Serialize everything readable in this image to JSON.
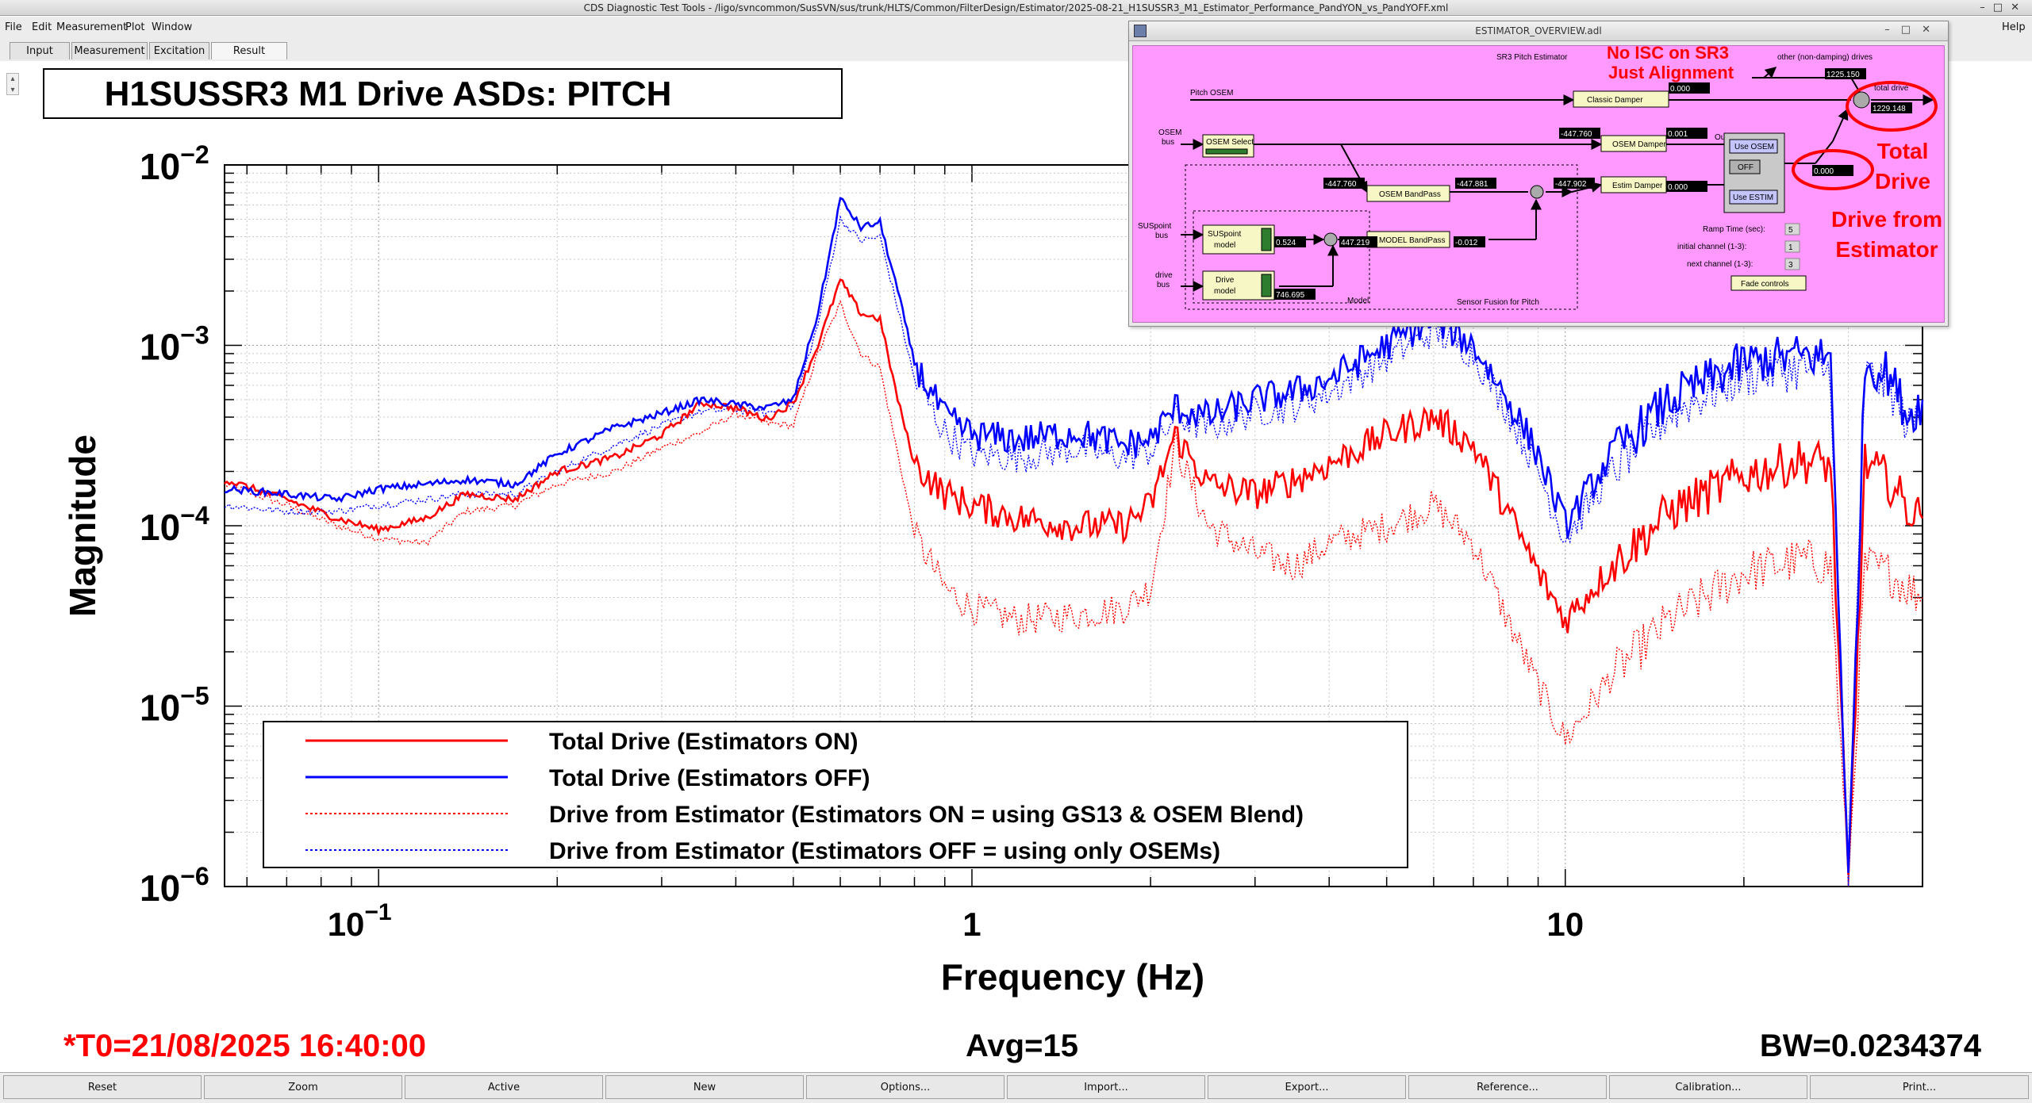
{
  "app": {
    "title": "CDS Diagnostic Test Tools - /ligo/svncommon/SusSVN/sus/trunk/HLTS/Common/FilterDesign/Estimator/2025-08-21_H1SUSSR3_M1_Estimator_Performance_PandYON_vs_PandYOFF.xml"
  },
  "menu": {
    "file": "File",
    "edit": "Edit",
    "measurement": "Measurement",
    "plot": "Plot",
    "window": "Window",
    "help": "Help"
  },
  "tabs": [
    "Input",
    "Measurement",
    "Excitation",
    "Result"
  ],
  "plot": {
    "title": "H1SUSSR3 M1 Drive ASDs: PITCH",
    "ylabel": "Magnitude",
    "xlabel": "Frequency (Hz)",
    "t0": "*T0=21/08/2025 16:40:00",
    "avg": "Avg=15",
    "bw": "BW=0.0234374",
    "ytick_base": "10",
    "yticks": [
      "−2",
      "−3",
      "−4",
      "−5",
      "−6"
    ],
    "xtick_base": "10",
    "xtick_exp": "−1",
    "xtick_1": "1",
    "xtick_10": "10"
  },
  "legend": [
    "Total Drive (Estimators ON)",
    "Total Drive (Estimators OFF)",
    "Drive from Estimator (Estimators ON = using GS13 & OSEM Blend)",
    "Drive from Estimator (Estimators OFF = using only OSEMs)"
  ],
  "colors": {
    "on": "#ff0000",
    "off": "#0000ff",
    "annotation": "#ff0000",
    "medm_bg": "#ff99ff"
  },
  "chart_data": {
    "type": "line",
    "xlabel": "Frequency (Hz)",
    "ylabel": "Magnitude",
    "title": "H1SUSSR3 M1 Drive ASDs: PITCH",
    "xscale": "log",
    "yscale": "log",
    "xlim": [
      0.055,
      40
    ],
    "ylim": [
      1e-06,
      0.01
    ],
    "grid": true,
    "legend_position": "bottom-left",
    "series": [
      {
        "name": "Total Drive (Estimators ON)",
        "style": "solid",
        "color": "#ff0000",
        "x": [
          0.055,
          0.07,
          0.085,
          0.1,
          0.12,
          0.14,
          0.17,
          0.2,
          0.25,
          0.3,
          0.35,
          0.4,
          0.45,
          0.5,
          0.55,
          0.6,
          0.65,
          0.7,
          0.75,
          0.8,
          0.9,
          1.0,
          1.2,
          1.5,
          1.8,
          2.0,
          2.2,
          2.5,
          3.0,
          3.5,
          4.0,
          5.0,
          6.0,
          7.0,
          8.0,
          9.0,
          10.0,
          12.0,
          15.0,
          20.0,
          25.0,
          28.0,
          30.0,
          32.0,
          35.0,
          38.0,
          40.0
        ],
        "y": [
          0.00018,
          0.00014,
          0.00011,
          9.5e-05,
          0.00011,
          0.00015,
          0.00014,
          0.0002,
          0.00024,
          0.00032,
          0.00048,
          0.00045,
          0.00039,
          0.00048,
          0.001,
          0.0023,
          0.0015,
          0.0014,
          0.0005,
          0.00022,
          0.00015,
          0.00013,
          0.00011,
          0.0001,
          0.0001,
          0.00013,
          0.00032,
          0.00017,
          0.00015,
          0.00018,
          0.00022,
          0.00032,
          0.0004,
          0.00028,
          0.00012,
          5.5e-05,
          3e-05,
          6e-05,
          0.00012,
          0.00019,
          0.00023,
          0.00022,
          1e-06,
          0.00022,
          0.00018,
          0.00012,
          0.00011
        ]
      },
      {
        "name": "Total Drive (Estimators OFF)",
        "style": "solid",
        "color": "#0000ff",
        "x": [
          0.055,
          0.07,
          0.085,
          0.1,
          0.12,
          0.14,
          0.17,
          0.2,
          0.25,
          0.3,
          0.35,
          0.4,
          0.45,
          0.5,
          0.55,
          0.6,
          0.65,
          0.7,
          0.75,
          0.8,
          0.9,
          1.0,
          1.2,
          1.5,
          1.8,
          2.0,
          2.2,
          2.5,
          3.0,
          3.5,
          4.0,
          5.0,
          6.0,
          7.0,
          8.0,
          9.0,
          10.0,
          12.0,
          15.0,
          20.0,
          25.0,
          28.0,
          30.0,
          32.0,
          35.0,
          38.0,
          40.0
        ],
        "y": [
          0.00016,
          0.00015,
          0.00014,
          0.00016,
          0.00017,
          0.00018,
          0.00017,
          0.00025,
          0.00035,
          0.00042,
          0.0005,
          0.00047,
          0.00045,
          0.0005,
          0.0015,
          0.0065,
          0.0045,
          0.0048,
          0.002,
          0.0008,
          0.0004,
          0.00032,
          0.0003,
          0.00033,
          0.00028,
          0.0003,
          0.00045,
          0.0004,
          0.0005,
          0.00055,
          0.00065,
          0.001,
          0.0014,
          0.001,
          0.0005,
          0.00025,
          0.0001,
          0.00025,
          0.0005,
          0.0008,
          0.00088,
          0.00085,
          1e-06,
          0.0008,
          0.0007,
          0.0004,
          0.0005
        ]
      },
      {
        "name": "Drive from Estimator (Estimators ON = using GS13 & OSEM Blend)",
        "style": "dotted",
        "color": "#ff0000",
        "x": [
          0.055,
          0.07,
          0.085,
          0.1,
          0.12,
          0.14,
          0.17,
          0.2,
          0.25,
          0.3,
          0.35,
          0.4,
          0.45,
          0.5,
          0.55,
          0.6,
          0.65,
          0.7,
          0.75,
          0.8,
          0.9,
          1.0,
          1.2,
          1.5,
          1.8,
          2.0,
          2.2,
          2.5,
          3.0,
          3.5,
          4.0,
          5.0,
          6.0,
          7.0,
          8.0,
          9.0,
          10.0,
          12.0,
          15.0,
          20.0,
          25.0,
          28.0,
          30.0,
          32.0,
          35.0,
          38.0,
          40.0
        ],
        "y": [
          0.00017,
          0.00013,
          0.0001,
          8.5e-05,
          8e-05,
          0.00012,
          0.00013,
          0.00017,
          0.0002,
          0.00027,
          0.00033,
          0.00042,
          0.00037,
          0.00036,
          0.0009,
          0.0017,
          0.0009,
          0.00075,
          0.00025,
          9e-05,
          4.5e-05,
          3.5e-05,
          3e-05,
          3.2e-05,
          3.5e-05,
          4.5e-05,
          0.00028,
          0.0001,
          7e-05,
          6e-05,
          8e-05,
          0.0001,
          0.00013,
          8e-05,
          3e-05,
          1.3e-05,
          6.5e-06,
          1.5e-05,
          3e-05,
          5.5e-05,
          6.5e-05,
          6e-05,
          1e-06,
          6e-05,
          5.5e-05,
          4.5e-05,
          4e-05
        ]
      },
      {
        "name": "Drive from Estimator (Estimators OFF = using only OSEMs)",
        "style": "dotted",
        "color": "#0000ff",
        "x": [
          0.055,
          0.07,
          0.085,
          0.1,
          0.12,
          0.14,
          0.17,
          0.2,
          0.25,
          0.3,
          0.35,
          0.4,
          0.45,
          0.5,
          0.55,
          0.6,
          0.65,
          0.7,
          0.75,
          0.8,
          0.9,
          1.0,
          1.2,
          1.5,
          1.8,
          2.0,
          2.2,
          2.5,
          3.0,
          3.5,
          4.0,
          5.0,
          6.0,
          7.0,
          8.0,
          9.0,
          10.0,
          12.0,
          15.0,
          20.0,
          25.0,
          28.0,
          30.0,
          32.0,
          35.0,
          38.0,
          40.0
        ],
        "y": [
          0.00013,
          0.00012,
          0.00012,
          0.00013,
          0.00014,
          0.00015,
          0.00015,
          0.0002,
          0.00028,
          0.00036,
          0.00043,
          0.00044,
          0.00042,
          0.00046,
          0.0013,
          0.005,
          0.0038,
          0.004,
          0.0016,
          0.00065,
          0.00033,
          0.00025,
          0.00024,
          0.00027,
          0.00024,
          0.00026,
          0.0004,
          0.00035,
          0.00043,
          0.00046,
          0.00055,
          0.00085,
          0.0012,
          0.0009,
          0.00043,
          0.0002,
          8.5e-05,
          0.0002,
          0.00042,
          0.00068,
          0.00075,
          0.00072,
          1e-06,
          0.0007,
          0.0006,
          0.00035,
          0.00045
        ]
      }
    ]
  },
  "estimator_window": {
    "title": "ESTIMATOR_OVERVIEW.adl",
    "labels": {
      "sr3_pitch": "SR3 Pitch Estimator",
      "other_drives": "other (non-damping) drives",
      "total_drive": "total drive",
      "pitch_osem": "Pitch OSEM",
      "osem_bus": "OSEM",
      "osem_bus2": "bus",
      "osem_select": "OSEM Select",
      "classic_damper": "Classic Damper",
      "osem_damper": "OSEM Damper",
      "estim_damper": "Estim Damper",
      "output_switch": "Output Switch",
      "use_osem": "Use OSEM",
      "off": "OFF",
      "use_estim": "Use ESTIM",
      "osem_bandpass": "OSEM BandPass",
      "model_bandpass": "MODEL BandPass",
      "suspoint_bus": "SUSpoint",
      "suspoint_bus2": "bus",
      "suspoint_model": "SUSpoint",
      "suspoint_model2": "model",
      "drive_bus": "drive",
      "drive_bus2": "bus",
      "drive_model": "Drive",
      "drive_model2": "model",
      "model": "Model",
      "sensor_fusion": "Sensor Fusion for Pitch",
      "ramp_time": "Ramp Time (sec):",
      "initial_channel": "initial channel (1-3):",
      "next_channel": "next channel (1-3):",
      "fade_controls": "Fade controls"
    },
    "values": {
      "other_drives": "1225.150",
      "total_drive": "1229.148",
      "classic_out": "0.000",
      "osem_select_out": "-447.760",
      "osem_damper_out": "0.001",
      "estim_damper_out": "0.000",
      "switch_out": "0.000",
      "osem_bp_in": "-447.760",
      "osem_bp_out": "-447.881",
      "sum_out": "-447.902",
      "suspoint_out": "0.524",
      "model_sum_out": "447.219",
      "model_bp_out": "-0.012",
      "drive_out": "746.695",
      "ramp_time": "5",
      "initial_channel": "1",
      "next_channel": "3"
    }
  },
  "annotations": {
    "no_isc_line1": "No ISC on SR3",
    "no_isc_line2": "Just Alignment",
    "total_drive_line1": "Total",
    "total_drive_line2": "Drive",
    "drive_from_line1": "Drive from",
    "drive_from_line2": "Estimator"
  },
  "bottom_buttons": [
    "Reset",
    "Zoom",
    "Active",
    "New",
    "Options...",
    "Import...",
    "Export...",
    "Reference...",
    "Calibration...",
    "Print..."
  ]
}
